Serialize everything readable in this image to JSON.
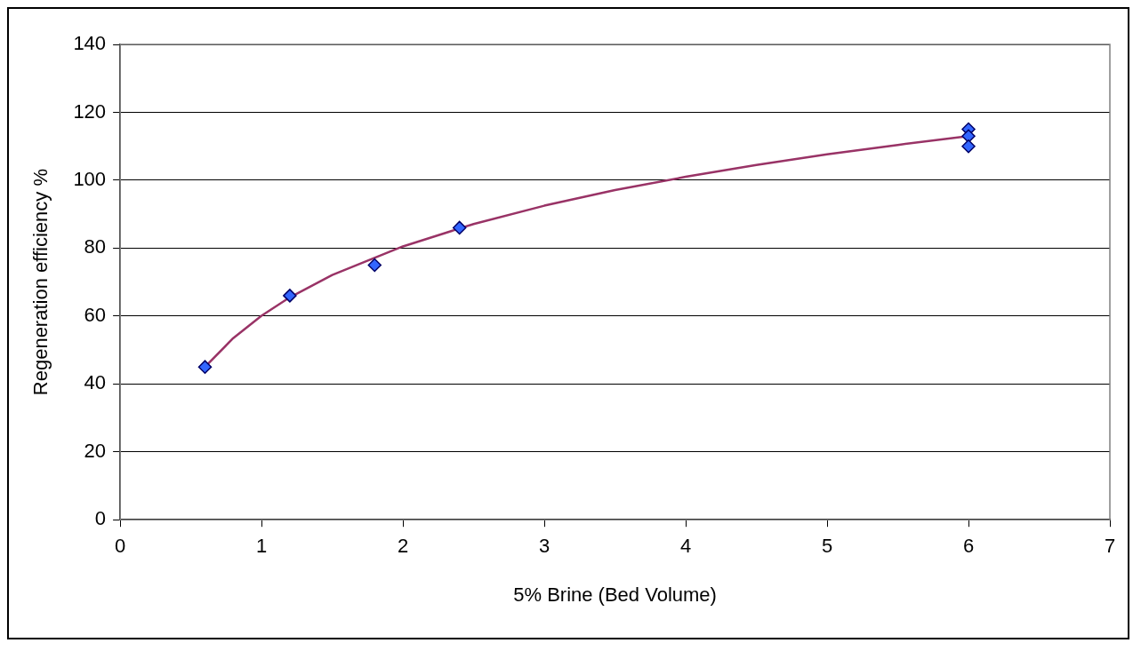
{
  "chart_data": {
    "type": "scatter",
    "xlabel": "5% Brine (Bed Volume)",
    "ylabel": "Regeneration efficiency %",
    "xlim": [
      0,
      7
    ],
    "xticks": [
      0,
      1,
      2,
      3,
      4,
      5,
      6,
      7
    ],
    "ylim": [
      0,
      140
    ],
    "yticks": [
      0,
      20,
      40,
      60,
      80,
      100,
      120,
      140
    ],
    "grid": "y",
    "marker": "diamond",
    "series": [
      {
        "type": "scatter",
        "color": "#3366ff",
        "x": [
          0.6,
          1.2,
          1.8,
          2.4,
          6,
          6,
          6
        ],
        "values": [
          45,
          66,
          75,
          86,
          115,
          113,
          110
        ]
      },
      {
        "type": "line",
        "color": "#993366",
        "marker": "none",
        "line_style": "solid",
        "x": [
          0.6,
          0.8,
          1.0,
          1.2,
          1.5,
          2.0,
          2.5,
          3.0,
          3.5,
          4.0,
          4.5,
          5.0,
          5.5,
          6.0
        ],
        "values": [
          45.0,
          53.5,
          60.1,
          65.5,
          72.1,
          80.5,
          87.1,
          92.5,
          97.1,
          101.0,
          104.5,
          107.6,
          110.4,
          113.0
        ]
      }
    ]
  }
}
